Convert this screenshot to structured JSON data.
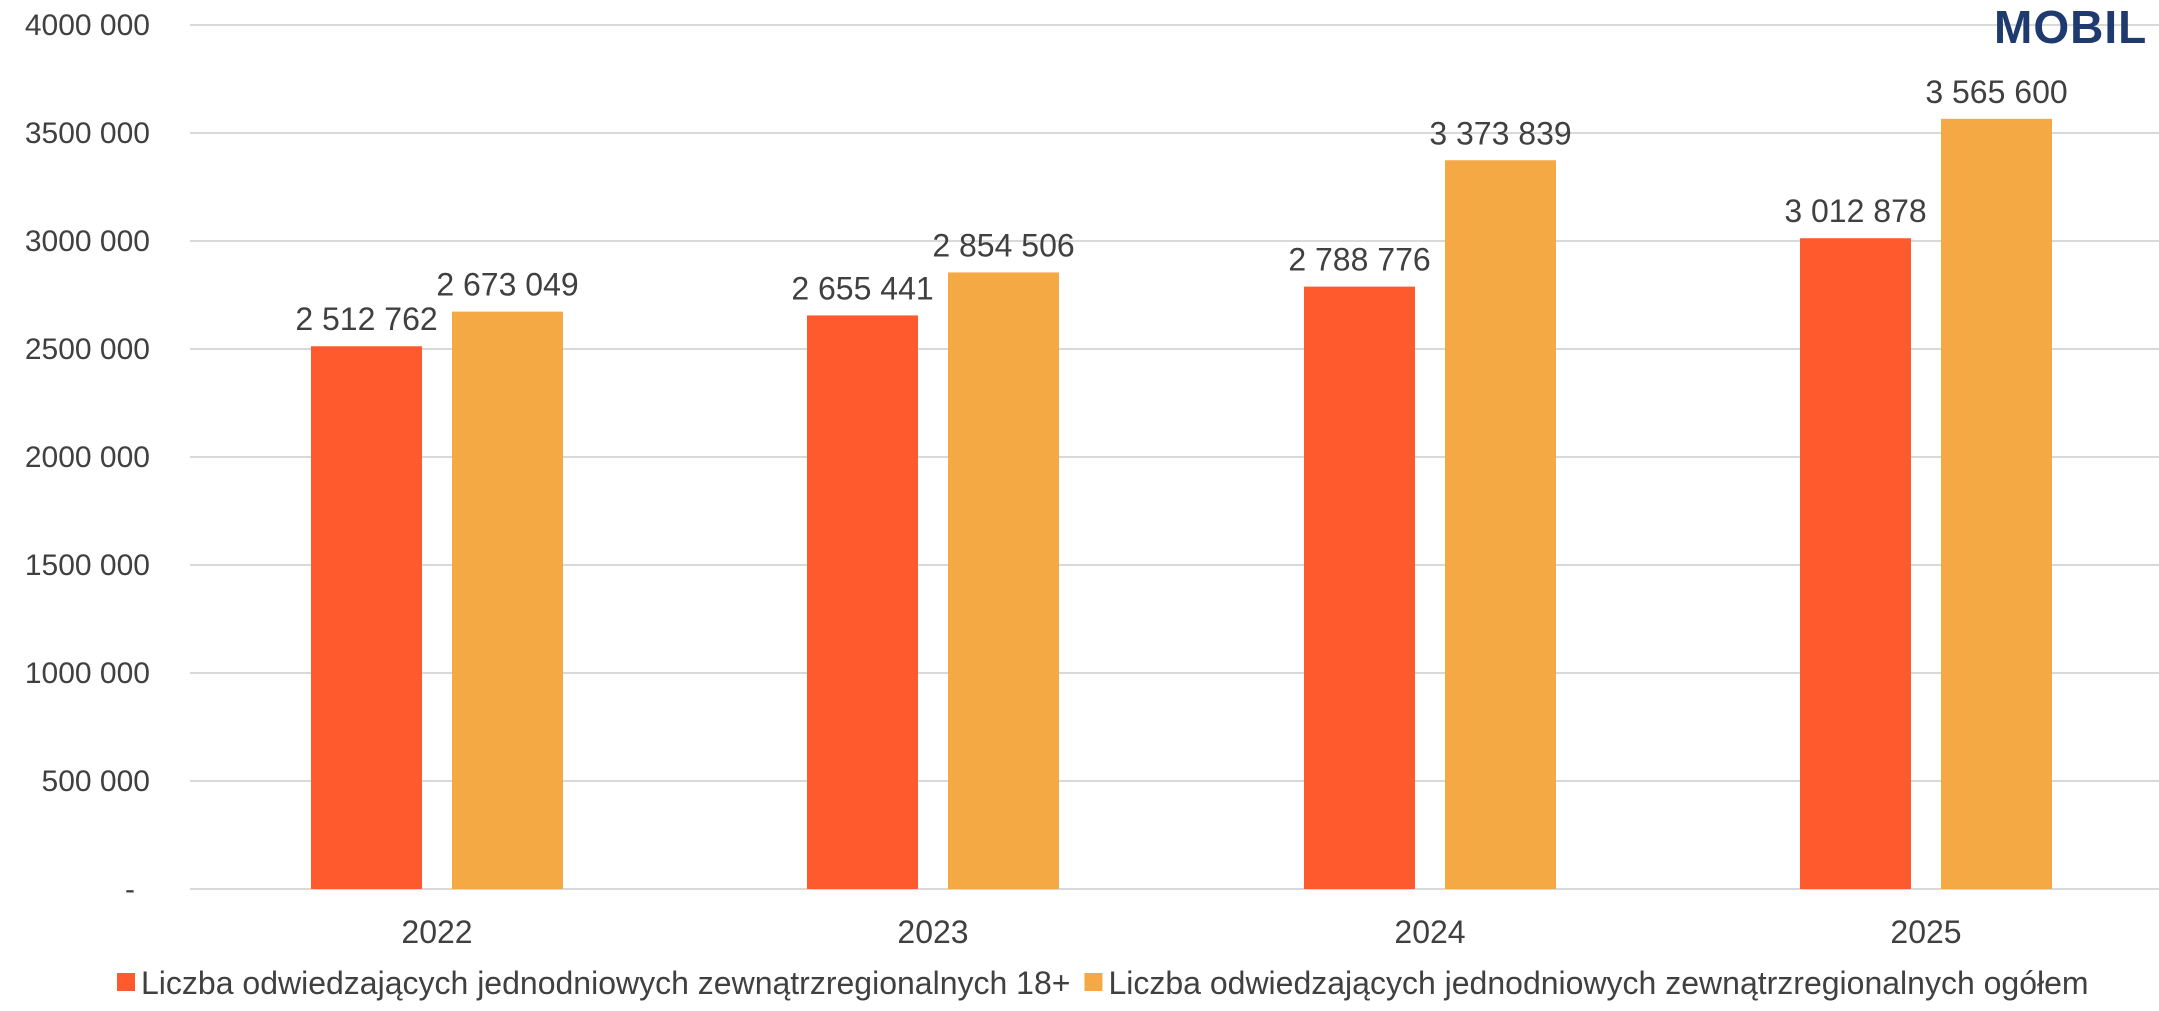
{
  "brand": {
    "logo_text": "MOBIL",
    "color": "#1f3a6e"
  },
  "colors": {
    "series_18plus": "#ff5a2d",
    "series_total": "#f5a945",
    "grid": "#d9d9d9",
    "text": "#404040"
  },
  "chart_data": {
    "type": "bar",
    "title": "",
    "xlabel": "",
    "ylabel": "",
    "categories": [
      "2022",
      "2023",
      "2024",
      "2025"
    ],
    "series": [
      {
        "name": "Liczba odwiedzających jednodniowych zewnątrzregionalnych  18+",
        "values": [
          2512762,
          2655441,
          2788776,
          3012878
        ],
        "labels": [
          "2 512 762",
          "2 655 441",
          "2 788 776",
          "3 012 878"
        ]
      },
      {
        "name": "Liczba odwiedzających jednodniowych zewnątrzregionalnych  ogółem",
        "values": [
          2673049,
          2854506,
          3373839,
          3565600
        ],
        "labels": [
          "2 673 049",
          "2 854 506",
          "3 373 839",
          "3 565 600"
        ]
      }
    ],
    "ylim": [
      0,
      4000000
    ],
    "yticks": [
      0,
      500000,
      1000000,
      1500000,
      2000000,
      2500000,
      3000000,
      3500000,
      4000000
    ],
    "ytick_labels": [
      "-",
      "500 000",
      "1000 000",
      "1500 000",
      "2000 000",
      "2500 000",
      "3000 000",
      "3500 000",
      "4000 000"
    ],
    "grid": true,
    "legend_position": "bottom"
  }
}
